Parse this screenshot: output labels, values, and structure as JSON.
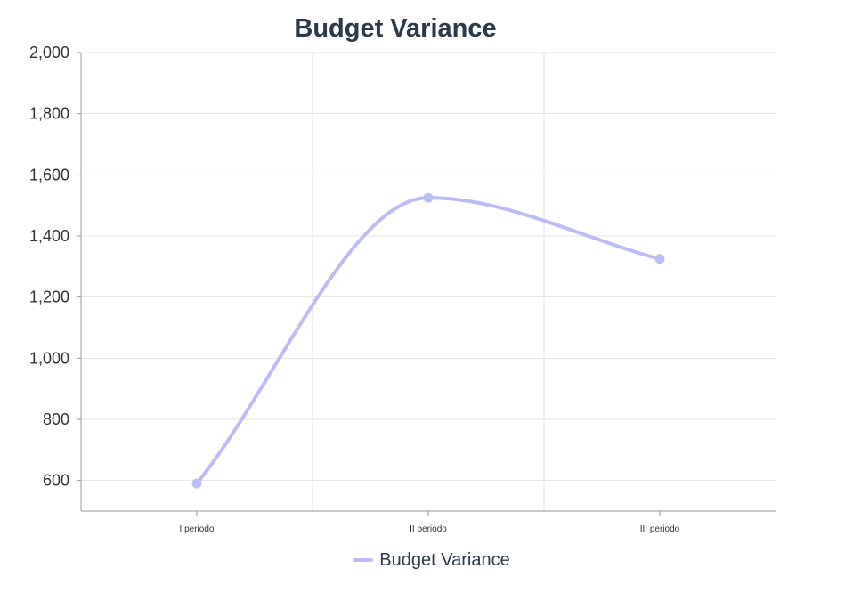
{
  "chart_data": {
    "type": "line",
    "title": "Budget Variance",
    "categories": [
      "I periodo",
      "II periodo",
      "III periodo"
    ],
    "series": [
      {
        "name": "Budget Variance",
        "values": [
          590,
          1525,
          1325
        ],
        "color": "#bcbdf7"
      }
    ],
    "ylim": [
      500,
      2000
    ],
    "yticks": [
      {
        "value": 600,
        "label": "600"
      },
      {
        "value": 800,
        "label": "800"
      },
      {
        "value": 1000,
        "label": "1,000"
      },
      {
        "value": 1200,
        "label": "1,200"
      },
      {
        "value": 1400,
        "label": "1,400"
      },
      {
        "value": 1600,
        "label": "1,600"
      },
      {
        "value": 1800,
        "label": "1,800"
      },
      {
        "value": 2000,
        "label": "2,000"
      }
    ],
    "grid": true,
    "legend_position": "bottom",
    "smooth": true
  }
}
